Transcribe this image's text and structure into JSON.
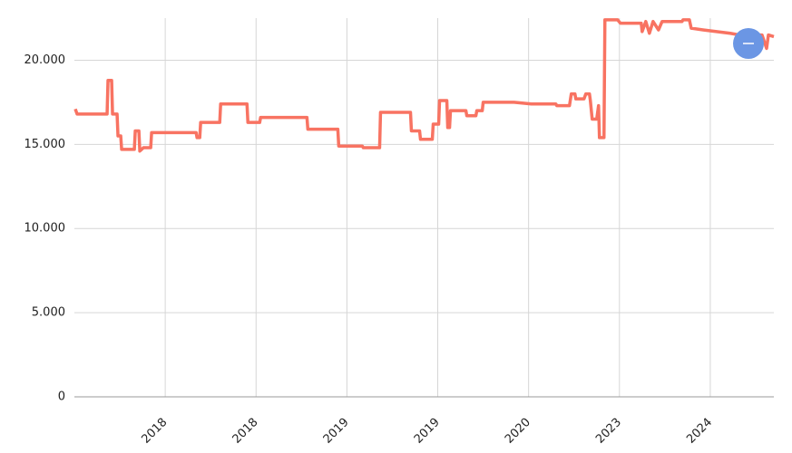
{
  "chart_data": {
    "type": "line",
    "xlim": [
      -1,
      6.7
    ],
    "xticks": [
      {
        "value": 0,
        "label": "2018"
      },
      {
        "value": 1,
        "label": "2018"
      },
      {
        "value": 2,
        "label": "2019"
      },
      {
        "value": 3,
        "label": "2019"
      },
      {
        "value": 4,
        "label": "2020"
      },
      {
        "value": 5,
        "label": "2023"
      },
      {
        "value": 6,
        "label": "2024"
      }
    ],
    "ylim": [
      0,
      22500
    ],
    "yticks": [
      0,
      {
        "value": 5000,
        "label": "5.000"
      },
      {
        "value": 10000,
        "label": "10.000"
      },
      {
        "value": 15000,
        "label": "15.000"
      },
      {
        "value": 20000,
        "label": "20.000"
      }
    ],
    "grid": true,
    "series": [
      {
        "color": "#f87362",
        "x": [
          -0.99,
          -0.97,
          -0.64,
          -0.63,
          -0.59,
          -0.58,
          -0.53,
          -0.52,
          -0.49,
          -0.48,
          -0.34,
          -0.33,
          -0.29,
          -0.28,
          -0.24,
          -0.16,
          -0.15,
          0.34,
          0.35,
          0.38,
          0.39,
          0.6,
          0.61,
          0.9,
          0.91,
          1.04,
          1.05,
          1.56,
          1.57,
          1.9,
          1.91,
          2.17,
          2.18,
          2.36,
          2.37,
          2.7,
          2.71,
          2.8,
          2.81,
          2.94,
          2.95,
          3.01,
          3.02,
          3.1,
          3.11,
          3.13,
          3.14,
          3.31,
          3.32,
          3.42,
          3.43,
          3.49,
          3.5,
          3.81,
          3.84,
          4.03,
          4.3,
          4.31,
          4.45,
          4.47,
          4.51,
          4.52,
          4.61,
          4.63,
          4.67,
          4.68,
          4.7,
          4.75,
          4.77,
          4.78,
          4.83,
          4.84,
          4.98,
          5.01,
          5.24,
          5.25,
          5.29,
          5.33,
          5.37,
          5.43,
          5.47,
          5.69,
          5.7,
          5.77,
          5.79,
          5.92,
          6.07,
          6.22,
          6.32,
          6.57,
          6.62,
          6.64,
          6.7
        ],
        "values": [
          17100,
          16800,
          16800,
          18800,
          18800,
          16800,
          16800,
          15500,
          15500,
          14700,
          14700,
          15800,
          15800,
          14600,
          14800,
          14800,
          15700,
          15700,
          15400,
          15400,
          16300,
          16300,
          17400,
          17400,
          16300,
          16300,
          16600,
          16600,
          15900,
          15900,
          14900,
          14900,
          14800,
          14800,
          16900,
          16900,
          15800,
          15800,
          15300,
          15300,
          16200,
          16200,
          17600,
          17600,
          16000,
          16000,
          17000,
          17000,
          16700,
          16700,
          17000,
          17000,
          17500,
          17500,
          17500,
          17400,
          17400,
          17300,
          17300,
          18000,
          18000,
          17700,
          17700,
          18000,
          18000,
          17600,
          16500,
          16500,
          17300,
          15400,
          15400,
          22400,
          22400,
          22200,
          22200,
          21700,
          22300,
          21600,
          22300,
          21800,
          22300,
          22300,
          22400,
          22400,
          21900,
          21800,
          21700,
          21600,
          21500,
          21500,
          20700,
          21500,
          21400
        ]
      }
    ]
  }
}
